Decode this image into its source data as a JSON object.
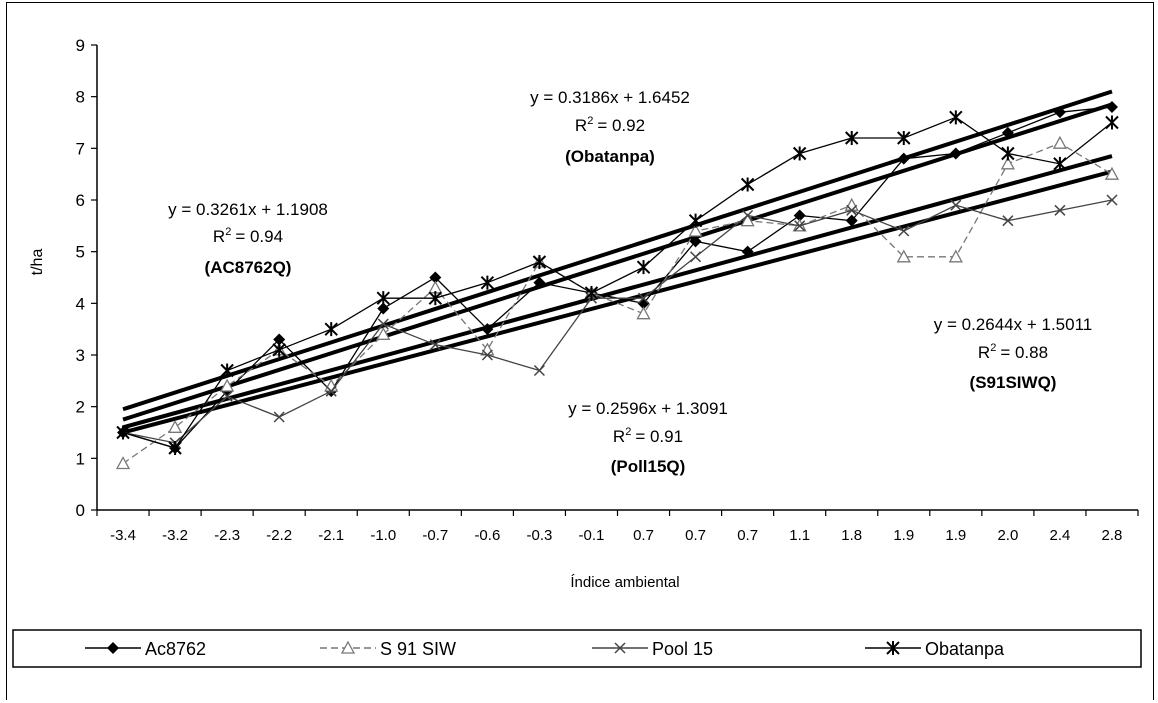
{
  "chart_data": {
    "type": "line",
    "xlabel": "Índice ambiental",
    "ylabel": "t/ha",
    "ylim": [
      0,
      9
    ],
    "yticks": [
      "0",
      "1",
      "2",
      "3",
      "4",
      "5",
      "6",
      "7",
      "8",
      "9"
    ],
    "categories": [
      "-3.4",
      "-3.2",
      "-2.3",
      "-2.2",
      "-2.1",
      "-1.0",
      "-0.7",
      "-0.6",
      "-0.3",
      "-0.1",
      "0.7",
      "0.7",
      "0.7",
      "1.1",
      "1.8",
      "1.9",
      "1.9",
      "2.0",
      "2.4",
      "2.8"
    ],
    "legend_position": "bottom",
    "series": [
      {
        "name": "Ac8762",
        "marker": "diamond",
        "color": "#000000",
        "values": [
          1.5,
          1.2,
          2.3,
          3.3,
          2.3,
          3.9,
          4.5,
          3.5,
          4.4,
          4.2,
          4.0,
          5.2,
          5.0,
          5.7,
          5.6,
          6.8,
          6.9,
          7.3,
          7.7,
          7.8
        ]
      },
      {
        "name": "S 91 SIW",
        "marker": "triangle",
        "color": "#777777",
        "values": [
          0.9,
          1.6,
          2.4,
          3.1,
          2.4,
          3.4,
          4.3,
          3.1,
          4.8,
          4.2,
          3.8,
          5.4,
          5.6,
          5.5,
          5.9,
          4.9,
          4.9,
          6.7,
          7.1,
          6.5
        ]
      },
      {
        "name": "Pool 15",
        "marker": "x",
        "color": "#444444",
        "values": [
          1.5,
          1.3,
          2.2,
          1.8,
          2.3,
          3.6,
          3.2,
          3.0,
          2.7,
          4.1,
          4.1,
          4.9,
          5.7,
          5.5,
          5.8,
          5.4,
          5.9,
          5.6,
          5.8,
          6.0
        ]
      },
      {
        "name": "Obatanpa",
        "marker": "star",
        "color": "#000000",
        "values": [
          1.5,
          1.2,
          2.7,
          3.1,
          3.5,
          4.1,
          4.1,
          4.4,
          4.8,
          4.2,
          4.7,
          5.6,
          6.3,
          6.9,
          7.2,
          7.2,
          7.6,
          6.9,
          6.7,
          7.5
        ]
      }
    ],
    "trendlines": [
      {
        "label": "AC8762Q",
        "slope": 0.3261,
        "intercept": 1.1908,
        "r2": 0.94
      },
      {
        "label": "Obatanpa",
        "slope": 0.3186,
        "intercept": 1.6452,
        "r2": 0.92
      },
      {
        "label": "S91SIWQ",
        "slope": 0.2644,
        "intercept": 1.5011,
        "r2": 0.88
      },
      {
        "label": "Poll15Q",
        "slope": 0.2596,
        "intercept": 1.3091,
        "r2": 0.91
      }
    ],
    "annotations": [
      {
        "id": "obatanpa",
        "equation": "y = 0.3186x + 1.6452",
        "r2_label": "R",
        "r2_sup": "2",
        "r2_value": "= 0.92",
        "name": "(Obatanpa)"
      },
      {
        "id": "ac8762q",
        "equation": "y = 0.3261x + 1.1908",
        "r2_label": "R",
        "r2_sup": "2",
        "r2_value": "= 0.94",
        "name": "(AC8762Q)"
      },
      {
        "id": "s91siwq",
        "equation": "y = 0.2644x + 1.5011",
        "r2_label": "R",
        "r2_sup": "2",
        "r2_value": "= 0.88",
        "name": "(S91SIWQ)"
      },
      {
        "id": "poll15q",
        "equation": "y = 0.2596x + 1.3091",
        "r2_label": "R",
        "r2_sup": "2",
        "r2_value": "= 0.91",
        "name": "(Poll15Q)"
      }
    ]
  }
}
